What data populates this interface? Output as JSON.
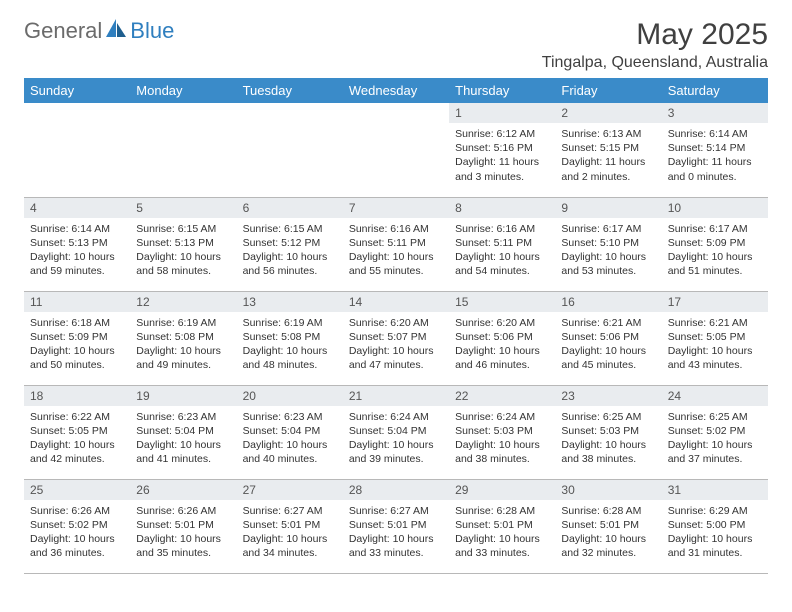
{
  "logo": {
    "part1": "General",
    "part2": "Blue"
  },
  "title": "May 2025",
  "location": "Tingalpa, Queensland, Australia",
  "weekdays": [
    "Sunday",
    "Monday",
    "Tuesday",
    "Wednesday",
    "Thursday",
    "Friday",
    "Saturday"
  ],
  "colors": {
    "header_bg": "#3a8bc9",
    "header_text": "#ffffff",
    "daynum_bg": "#e9ecef",
    "border": "#b8b8b8",
    "logo_gray": "#6b6b6b",
    "logo_blue": "#2f7fbf",
    "title_color": "#404040"
  },
  "days": [
    {
      "n": "",
      "sr": "",
      "ss": "",
      "dl": ""
    },
    {
      "n": "",
      "sr": "",
      "ss": "",
      "dl": ""
    },
    {
      "n": "",
      "sr": "",
      "ss": "",
      "dl": ""
    },
    {
      "n": "",
      "sr": "",
      "ss": "",
      "dl": ""
    },
    {
      "n": "1",
      "sr": "Sunrise: 6:12 AM",
      "ss": "Sunset: 5:16 PM",
      "dl": "Daylight: 11 hours and 3 minutes."
    },
    {
      "n": "2",
      "sr": "Sunrise: 6:13 AM",
      "ss": "Sunset: 5:15 PM",
      "dl": "Daylight: 11 hours and 2 minutes."
    },
    {
      "n": "3",
      "sr": "Sunrise: 6:14 AM",
      "ss": "Sunset: 5:14 PM",
      "dl": "Daylight: 11 hours and 0 minutes."
    },
    {
      "n": "4",
      "sr": "Sunrise: 6:14 AM",
      "ss": "Sunset: 5:13 PM",
      "dl": "Daylight: 10 hours and 59 minutes."
    },
    {
      "n": "5",
      "sr": "Sunrise: 6:15 AM",
      "ss": "Sunset: 5:13 PM",
      "dl": "Daylight: 10 hours and 58 minutes."
    },
    {
      "n": "6",
      "sr": "Sunrise: 6:15 AM",
      "ss": "Sunset: 5:12 PM",
      "dl": "Daylight: 10 hours and 56 minutes."
    },
    {
      "n": "7",
      "sr": "Sunrise: 6:16 AM",
      "ss": "Sunset: 5:11 PM",
      "dl": "Daylight: 10 hours and 55 minutes."
    },
    {
      "n": "8",
      "sr": "Sunrise: 6:16 AM",
      "ss": "Sunset: 5:11 PM",
      "dl": "Daylight: 10 hours and 54 minutes."
    },
    {
      "n": "9",
      "sr": "Sunrise: 6:17 AM",
      "ss": "Sunset: 5:10 PM",
      "dl": "Daylight: 10 hours and 53 minutes."
    },
    {
      "n": "10",
      "sr": "Sunrise: 6:17 AM",
      "ss": "Sunset: 5:09 PM",
      "dl": "Daylight: 10 hours and 51 minutes."
    },
    {
      "n": "11",
      "sr": "Sunrise: 6:18 AM",
      "ss": "Sunset: 5:09 PM",
      "dl": "Daylight: 10 hours and 50 minutes."
    },
    {
      "n": "12",
      "sr": "Sunrise: 6:19 AM",
      "ss": "Sunset: 5:08 PM",
      "dl": "Daylight: 10 hours and 49 minutes."
    },
    {
      "n": "13",
      "sr": "Sunrise: 6:19 AM",
      "ss": "Sunset: 5:08 PM",
      "dl": "Daylight: 10 hours and 48 minutes."
    },
    {
      "n": "14",
      "sr": "Sunrise: 6:20 AM",
      "ss": "Sunset: 5:07 PM",
      "dl": "Daylight: 10 hours and 47 minutes."
    },
    {
      "n": "15",
      "sr": "Sunrise: 6:20 AM",
      "ss": "Sunset: 5:06 PM",
      "dl": "Daylight: 10 hours and 46 minutes."
    },
    {
      "n": "16",
      "sr": "Sunrise: 6:21 AM",
      "ss": "Sunset: 5:06 PM",
      "dl": "Daylight: 10 hours and 45 minutes."
    },
    {
      "n": "17",
      "sr": "Sunrise: 6:21 AM",
      "ss": "Sunset: 5:05 PM",
      "dl": "Daylight: 10 hours and 43 minutes."
    },
    {
      "n": "18",
      "sr": "Sunrise: 6:22 AM",
      "ss": "Sunset: 5:05 PM",
      "dl": "Daylight: 10 hours and 42 minutes."
    },
    {
      "n": "19",
      "sr": "Sunrise: 6:23 AM",
      "ss": "Sunset: 5:04 PM",
      "dl": "Daylight: 10 hours and 41 minutes."
    },
    {
      "n": "20",
      "sr": "Sunrise: 6:23 AM",
      "ss": "Sunset: 5:04 PM",
      "dl": "Daylight: 10 hours and 40 minutes."
    },
    {
      "n": "21",
      "sr": "Sunrise: 6:24 AM",
      "ss": "Sunset: 5:04 PM",
      "dl": "Daylight: 10 hours and 39 minutes."
    },
    {
      "n": "22",
      "sr": "Sunrise: 6:24 AM",
      "ss": "Sunset: 5:03 PM",
      "dl": "Daylight: 10 hours and 38 minutes."
    },
    {
      "n": "23",
      "sr": "Sunrise: 6:25 AM",
      "ss": "Sunset: 5:03 PM",
      "dl": "Daylight: 10 hours and 38 minutes."
    },
    {
      "n": "24",
      "sr": "Sunrise: 6:25 AM",
      "ss": "Sunset: 5:02 PM",
      "dl": "Daylight: 10 hours and 37 minutes."
    },
    {
      "n": "25",
      "sr": "Sunrise: 6:26 AM",
      "ss": "Sunset: 5:02 PM",
      "dl": "Daylight: 10 hours and 36 minutes."
    },
    {
      "n": "26",
      "sr": "Sunrise: 6:26 AM",
      "ss": "Sunset: 5:01 PM",
      "dl": "Daylight: 10 hours and 35 minutes."
    },
    {
      "n": "27",
      "sr": "Sunrise: 6:27 AM",
      "ss": "Sunset: 5:01 PM",
      "dl": "Daylight: 10 hours and 34 minutes."
    },
    {
      "n": "28",
      "sr": "Sunrise: 6:27 AM",
      "ss": "Sunset: 5:01 PM",
      "dl": "Daylight: 10 hours and 33 minutes."
    },
    {
      "n": "29",
      "sr": "Sunrise: 6:28 AM",
      "ss": "Sunset: 5:01 PM",
      "dl": "Daylight: 10 hours and 33 minutes."
    },
    {
      "n": "30",
      "sr": "Sunrise: 6:28 AM",
      "ss": "Sunset: 5:01 PM",
      "dl": "Daylight: 10 hours and 32 minutes."
    },
    {
      "n": "31",
      "sr": "Sunrise: 6:29 AM",
      "ss": "Sunset: 5:00 PM",
      "dl": "Daylight: 10 hours and 31 minutes."
    }
  ]
}
